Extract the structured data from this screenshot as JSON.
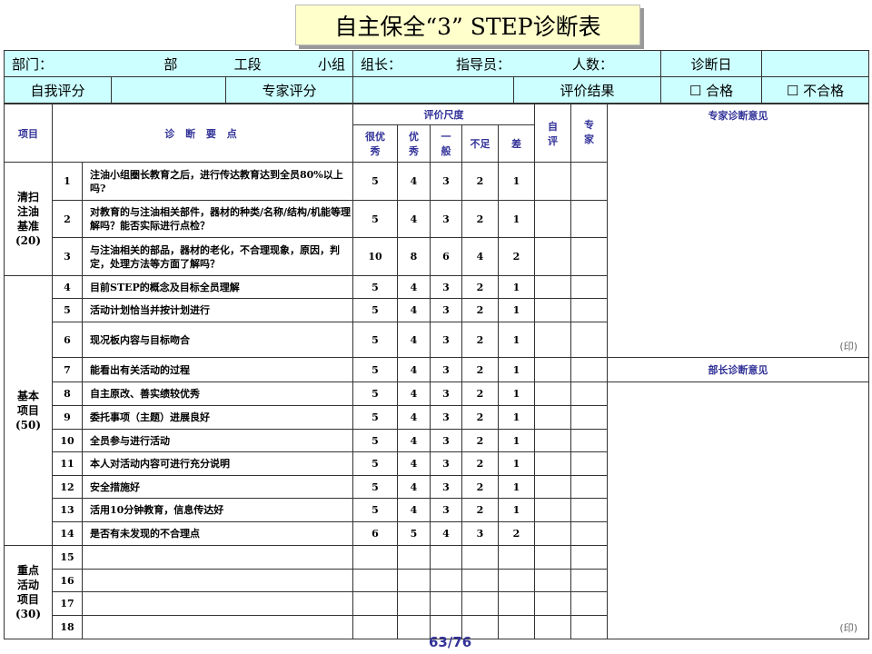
{
  "title": "自主保全“3” STEP诊断表",
  "header_row1": {
    "dept": "部门：",
    "bu": "部",
    "section": "工段",
    "group": "小组",
    "leader": "组长：",
    "instructor": "指导员：",
    "headcount": "人数：",
    "diag_date": "诊断日"
  },
  "header_row2": {
    "self_score": "自我评分",
    "expert_score": "专家评分",
    "result": "评价结果",
    "pass": "☐ 合格",
    "fail": "☐ 不合格"
  },
  "columns": {
    "item": "项目",
    "points": "诊 断 要 点",
    "scale": "评价尺度",
    "very_good": "很优秀",
    "good": "优秀",
    "average": "一般",
    "insufficient": "不足",
    "poor": "差",
    "self": "自评",
    "expert": "专家",
    "expert_opinion": "专家诊断意见",
    "manager_opinion": "部长诊断意见",
    "seal": "(印)"
  },
  "groups": [
    {
      "name": "清扫注油基准",
      "score": "(20)"
    },
    {
      "name": "基本项目",
      "score": "(50)"
    },
    {
      "name": "重点活动项目",
      "score": "(30)"
    }
  ],
  "rows": [
    {
      "no": "1",
      "text": "注油小组圈长教育之后，进行传达教育达到全员80%以上吗?",
      "s": [
        "5",
        "4",
        "3",
        "2",
        "1"
      ]
    },
    {
      "no": "2",
      "text": "对教育的与注油相关部件，器材的种类/名称/结构/机能等理解吗？能否实际进行点检？",
      "s": [
        "5",
        "4",
        "3",
        "2",
        "1"
      ]
    },
    {
      "no": "3",
      "text": "与注油相关的部品，器材的老化，不合理现象，原因，判定，处理方法等方面了解吗？",
      "s": [
        "10",
        "8",
        "6",
        "4",
        "2"
      ]
    },
    {
      "no": "4",
      "text": "目前STEP的概念及目标全员理解",
      "s": [
        "5",
        "4",
        "3",
        "2",
        "1"
      ]
    },
    {
      "no": "5",
      "text": "活动计划恰当并按计划进行",
      "s": [
        "5",
        "4",
        "3",
        "2",
        "1"
      ]
    },
    {
      "no": "6",
      "text": "现况板内容与目标吻合",
      "s": [
        "5",
        "4",
        "3",
        "2",
        "1"
      ]
    },
    {
      "no": "7",
      "text": "能看出有关活动的过程",
      "s": [
        "5",
        "4",
        "3",
        "2",
        "1"
      ]
    },
    {
      "no": "8",
      "text": "自主原改、善实绩较优秀",
      "s": [
        "5",
        "4",
        "3",
        "2",
        "1"
      ]
    },
    {
      "no": "9",
      "text": "委托事项（主题）进展良好",
      "s": [
        "5",
        "4",
        "3",
        "2",
        "1"
      ]
    },
    {
      "no": "10",
      "text": "全员参与进行活动",
      "s": [
        "5",
        "4",
        "3",
        "2",
        "1"
      ]
    },
    {
      "no": "11",
      "text": "本人对活动内容可进行充分说明",
      "s": [
        "5",
        "4",
        "3",
        "2",
        "1"
      ]
    },
    {
      "no": "12",
      "text": "安全措施好",
      "s": [
        "5",
        "4",
        "3",
        "2",
        "1"
      ]
    },
    {
      "no": "13",
      "text": "活用10分钟教育，信息传达好",
      "s": [
        "5",
        "4",
        "3",
        "2",
        "1"
      ]
    },
    {
      "no": "14",
      "text": "是否有未发现的不合理点",
      "s": [
        "6",
        "5",
        "4",
        "3",
        "2"
      ]
    },
    {
      "no": "15",
      "text": "",
      "s": [
        "",
        "",
        "",
        "",
        ""
      ]
    },
    {
      "no": "16",
      "text": "",
      "s": [
        "",
        "",
        "",
        "",
        ""
      ]
    },
    {
      "no": "17",
      "text": "",
      "s": [
        "",
        "",
        "",
        "",
        ""
      ]
    },
    {
      "no": "18",
      "text": "",
      "s": [
        "",
        "",
        "",
        "",
        ""
      ]
    }
  ],
  "page": "63/76",
  "colors": {
    "header_bg": "#CCFFFF",
    "title_bg": "#FFFFCC",
    "label_blue": "#333399"
  }
}
